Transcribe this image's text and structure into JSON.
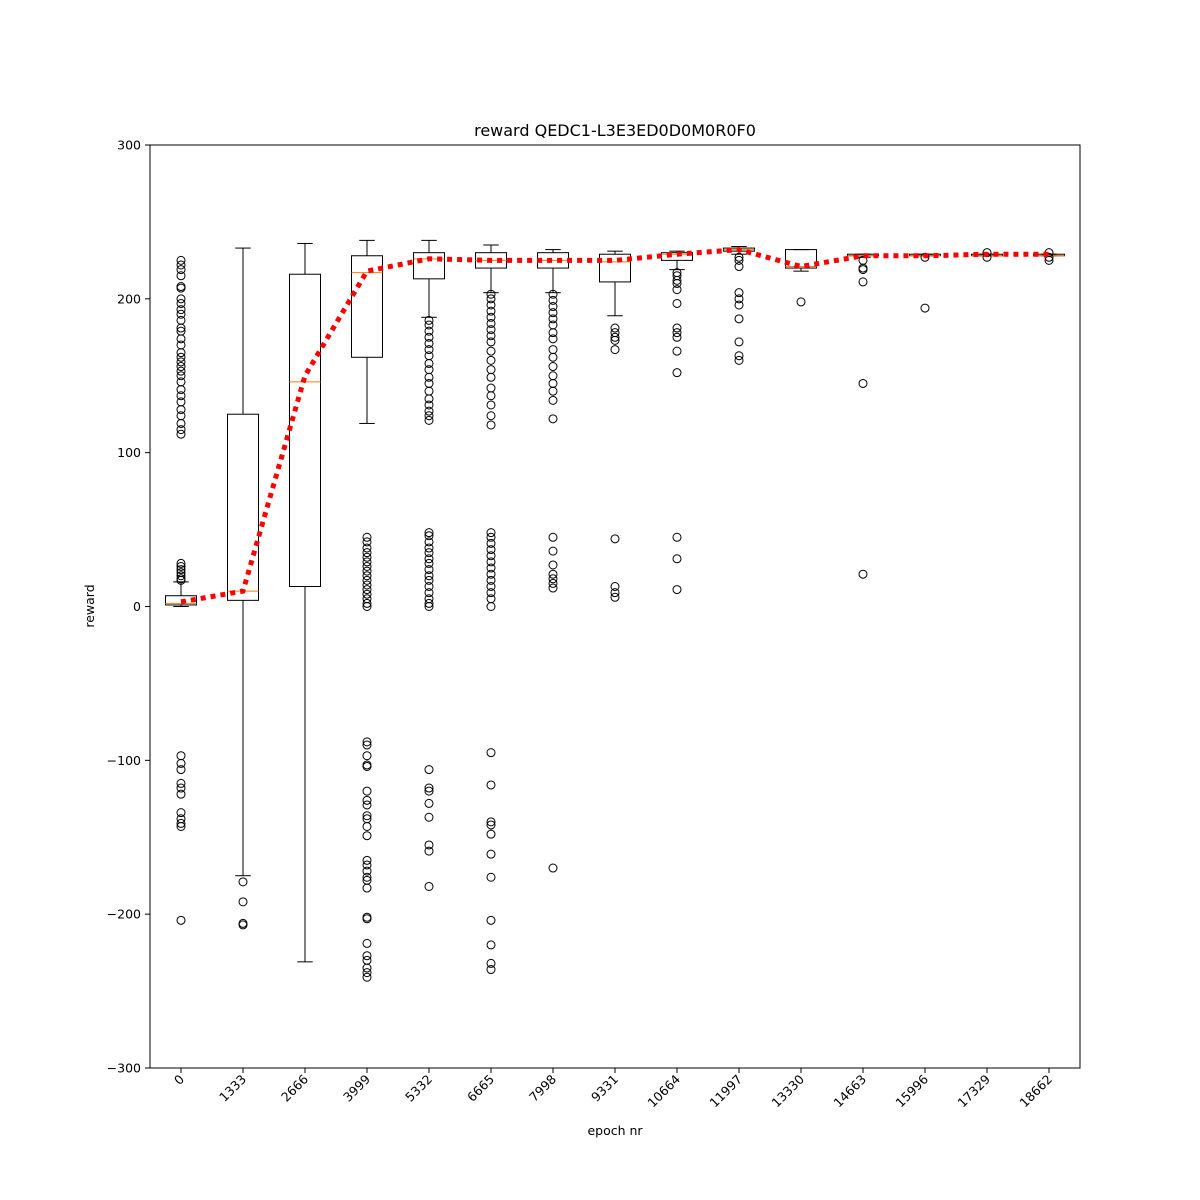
{
  "chart_data": {
    "type": "box",
    "title": "reward QEDC1-L3E3ED0D0M0R0F0",
    "xlabel": "epoch nr",
    "ylabel": "reward",
    "ylim": [
      -300,
      300
    ],
    "yticks": [
      -300,
      -200,
      -100,
      0,
      100,
      200,
      300
    ],
    "categories": [
      "0",
      "1333",
      "2666",
      "3999",
      "5332",
      "6665",
      "7998",
      "9331",
      "10664",
      "11997",
      "13330",
      "14663",
      "15996",
      "17329",
      "18662"
    ],
    "boxes": [
      {
        "whisker_low": 0,
        "q1": 1,
        "median": 2,
        "q3": 7,
        "whisker_high": 16,
        "outliers": [
          225,
          222,
          219,
          215,
          208,
          207,
          200,
          197,
          193,
          190,
          186,
          181,
          179,
          174,
          170,
          165,
          162,
          159,
          156,
          153,
          150,
          146,
          141,
          137,
          133,
          128,
          124,
          119,
          115,
          112,
          28,
          26,
          24,
          22,
          20,
          18,
          17,
          -97,
          -102,
          -106,
          -115,
          -118,
          -122,
          -134,
          -138,
          -141,
          -143,
          -204
        ]
      },
      {
        "whisker_low": -175,
        "q1": 4,
        "median": 10,
        "q3": 125,
        "whisker_high": 233,
        "outliers": [
          -179,
          -192,
          -206,
          -207
        ]
      },
      {
        "whisker_low": -231,
        "q1": 13,
        "median": 146,
        "q3": 216,
        "whisker_high": 236,
        "outliers": []
      },
      {
        "whisker_low": 119,
        "q1": 162,
        "median": 217,
        "q3": 228,
        "whisker_high": 238,
        "outliers": [
          45,
          42,
          38,
          35,
          32,
          29,
          26,
          23,
          20,
          17,
          14,
          11,
          8,
          5,
          2,
          0,
          -88,
          -90,
          -97,
          -103,
          -104,
          -120,
          -126,
          -129,
          -136,
          -138,
          -143,
          -149,
          -165,
          -168,
          -172,
          -176,
          -178,
          -183,
          -202,
          -203,
          -219,
          -227,
          -230,
          -235,
          -238,
          -241
        ]
      },
      {
        "whisker_low": 188,
        "q1": 213,
        "median": 226,
        "q3": 230,
        "whisker_high": 238,
        "outliers": [
          186,
          183,
          179,
          175,
          171,
          167,
          163,
          158,
          154,
          149,
          145,
          140,
          135,
          131,
          127,
          124,
          121,
          48,
          46,
          42,
          38,
          35,
          31,
          28,
          24,
          20,
          17,
          13,
          9,
          5,
          2,
          0,
          -106,
          -118,
          -120,
          -128,
          -137,
          -155,
          -159,
          -182
        ]
      },
      {
        "whisker_low": 204,
        "q1": 220,
        "median": 225,
        "q3": 230,
        "whisker_high": 235,
        "outliers": [
          203,
          200,
          196,
          192,
          188,
          184,
          180,
          176,
          172,
          166,
          160,
          154,
          149,
          142,
          137,
          131,
          124,
          118,
          48,
          45,
          41,
          37,
          33,
          29,
          25,
          21,
          17,
          13,
          9,
          5,
          0,
          -95,
          -116,
          -140,
          -142,
          -148,
          -161,
          -176,
          -204,
          -220,
          -232,
          -236
        ]
      },
      {
        "whisker_low": 204,
        "q1": 220,
        "median": 225,
        "q3": 230,
        "whisker_high": 232,
        "outliers": [
          203,
          199,
          195,
          191,
          187,
          183,
          178,
          174,
          167,
          162,
          156,
          150,
          145,
          140,
          134,
          122,
          45,
          36,
          27,
          21,
          18,
          15,
          12,
          -170
        ]
      },
      {
        "whisker_low": 189,
        "q1": 211,
        "median": 224,
        "q3": 229,
        "whisker_high": 231,
        "outliers": [
          181,
          178,
          175,
          173,
          167,
          44,
          13,
          9,
          6
        ]
      },
      {
        "whisker_low": 219,
        "q1": 225,
        "median": 229,
        "q3": 230,
        "whisker_high": 231,
        "outliers": [
          217,
          215,
          212,
          210,
          206,
          197,
          181,
          178,
          175,
          166,
          152,
          45,
          31,
          11
        ]
      },
      {
        "whisker_low": 229,
        "q1": 231,
        "median": 232,
        "q3": 233,
        "whisker_high": 234,
        "outliers": [
          227,
          225,
          221,
          204,
          200,
          196,
          187,
          172,
          163,
          160
        ]
      },
      {
        "whisker_low": 218,
        "q1": 220,
        "median": 221,
        "q3": 232,
        "whisker_high": 232,
        "outliers": [
          198
        ]
      },
      {
        "whisker_low": 227,
        "q1": 228,
        "median": 228,
        "q3": 229,
        "whisker_high": 229,
        "outliers": [
          225,
          220,
          219,
          211,
          145,
          21
        ]
      },
      {
        "whisker_low": 228,
        "q1": 228,
        "median": 228,
        "q3": 229,
        "whisker_high": 229,
        "outliers": [
          227,
          194
        ]
      },
      {
        "whisker_low": 228,
        "q1": 228,
        "median": 228,
        "q3": 229,
        "whisker_high": 229,
        "outliers": [
          230,
          227
        ]
      },
      {
        "whisker_low": 228,
        "q1": 228,
        "median": 228,
        "q3": 229,
        "whisker_high": 229,
        "outliers": [
          230,
          227,
          225
        ]
      }
    ],
    "mean_line": {
      "color": "#ff0000",
      "style": "dotted",
      "values": [
        3,
        10,
        150,
        218,
        226,
        225,
        225,
        225,
        229,
        232,
        221,
        228,
        228,
        229,
        229
      ]
    },
    "colors": {
      "box": "#000000",
      "median": "#ff7f0e",
      "mean_line": "#ff0000"
    },
    "grid": false,
    "legend": false
  }
}
